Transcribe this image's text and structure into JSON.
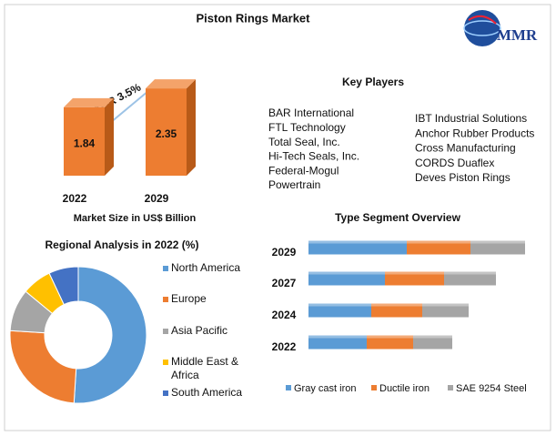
{
  "title": "Piston Rings Market",
  "logo": "MMR",
  "key_players": {
    "title": "Key Players",
    "left": [
      "BAR International",
      "FTL Technology",
      "Total Seal, Inc.",
      "Hi-Tech Seals, Inc.",
      "Federal-Mogul",
      "Powertrain"
    ],
    "right": [
      "IBT Industrial Solutions",
      "Anchor Rubber Products",
      "Cross Manufacturing",
      "CORDS Duaflex",
      "Deves Piston Rings"
    ]
  },
  "chart_data": [
    {
      "type": "bar3d",
      "categories": [
        "2022",
        "2029"
      ],
      "values": [
        1.84,
        2.35
      ],
      "color": "#ed7d31",
      "annotation": "CAGR 3.5%",
      "x_label": "Market Size in US$ Billion"
    },
    {
      "type": "donut",
      "title": "Regional Analysis in 2022 (%)",
      "categories": [
        "North America",
        "Europe",
        "Asia Pacific",
        "Middle East & Africa",
        "South America"
      ],
      "values": [
        51,
        25,
        10,
        7,
        7
      ],
      "colors": [
        "#5b9bd5",
        "#ed7d31",
        "#a5a5a5",
        "#ffc000",
        "#4472c4"
      ]
    },
    {
      "type": "stacked-barh",
      "title": "Type Segment Overview",
      "categories": [
        "2029",
        "2027",
        "2024",
        "2022"
      ],
      "series": [
        {
          "name": "Gray cast iron",
          "color": "#5b9bd5",
          "values": [
            108,
            84,
            69,
            64
          ]
        },
        {
          "name": "Ductile iron",
          "color": "#ed7d31",
          "values": [
            70,
            65,
            56,
            51
          ]
        },
        {
          "name": "SAE 9254 Steel",
          "color": "#a5a5a5",
          "values": [
            60,
            57,
            51,
            43
          ]
        }
      ]
    }
  ]
}
